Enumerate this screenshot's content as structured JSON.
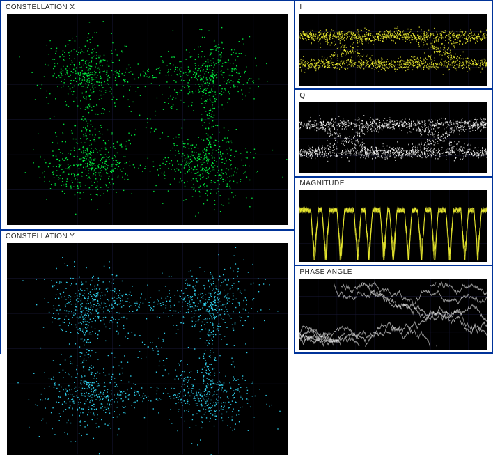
{
  "border_color": "#003399",
  "background_color": "#ffffff",
  "scope_bg": "#000000",
  "grid_color": "#1a1a3a",
  "left": {
    "constellation_x": {
      "title": "CONSTELLATION X",
      "type": "constellation",
      "dot_color": "#00ff44",
      "density": 1400,
      "dot_size": 1.4,
      "cluster_spread": 0.18,
      "bridge_density": 500
    },
    "constellation_y": {
      "title": "CONSTELLATION Y",
      "type": "constellation",
      "dot_color": "#33e0ff",
      "density": 1400,
      "dot_size": 1.4,
      "cluster_spread": 0.18,
      "bridge_density": 500
    }
  },
  "right": {
    "i_eye": {
      "title": "I",
      "type": "eye",
      "trace_color": "#ffff33",
      "density": 1100,
      "levels": [
        0.3,
        0.7
      ]
    },
    "q_eye": {
      "title": "Q",
      "type": "eye",
      "trace_color": "#ffffff",
      "density": 1100,
      "levels": [
        0.3,
        0.7
      ]
    },
    "magnitude": {
      "title": "MAGNITUDE",
      "type": "magnitude",
      "trace_color": "#ffff33",
      "baseline": 0.28,
      "dips": [
        0.08,
        0.14,
        0.22,
        0.31,
        0.37,
        0.45,
        0.5,
        0.58,
        0.65,
        0.72,
        0.8,
        0.88,
        0.95
      ],
      "noise": 0.08
    },
    "phase": {
      "title": "PHASE ANGLE",
      "type": "phase",
      "trace_color": "#ffffff",
      "segments": 5
    }
  },
  "title_fontsize": 10,
  "title_color": "#222222"
}
